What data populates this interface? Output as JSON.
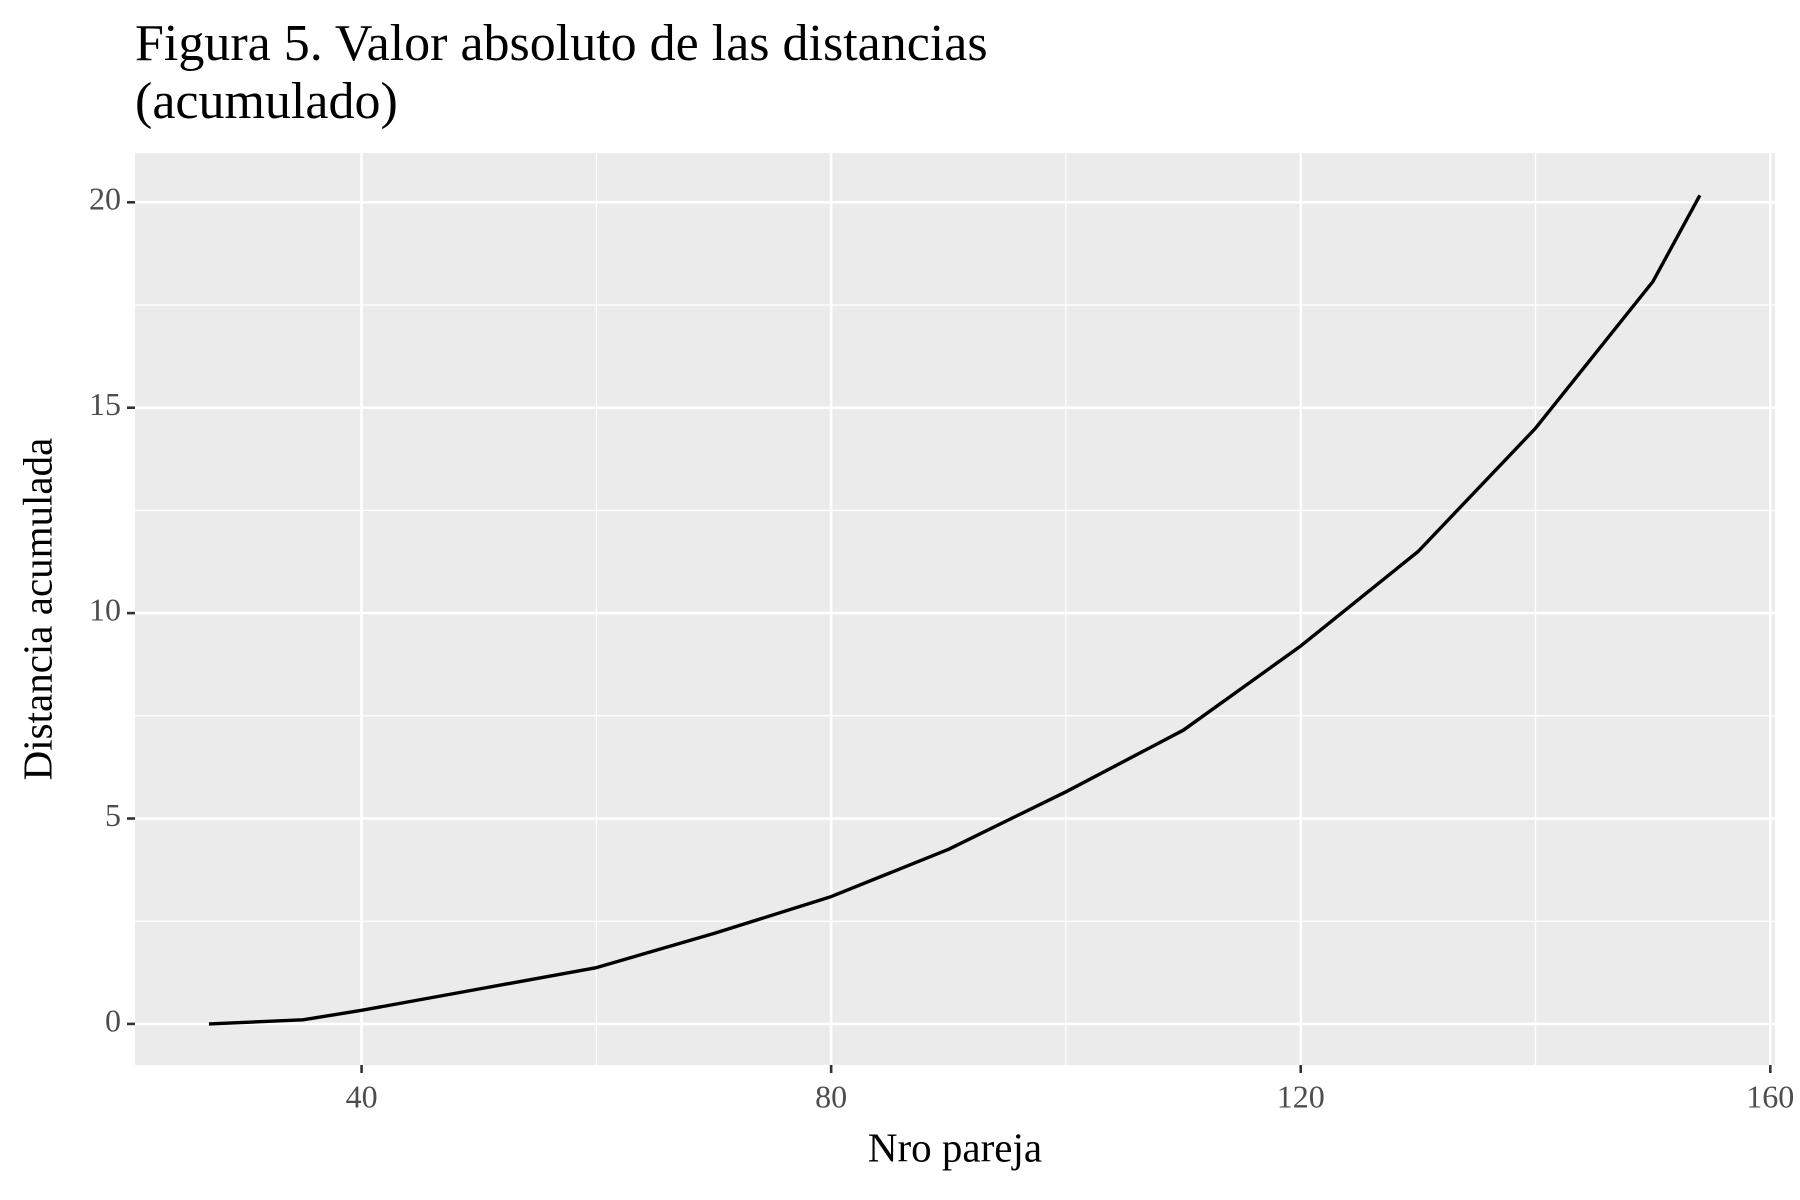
{
  "chart_data": {
    "type": "line",
    "title": [
      "Figura 5. Valor absoluto de las distancias",
      "(acumulado)"
    ],
    "x_label": "Nro pareja",
    "y_label": "Distancia acumulada",
    "x": [
      27,
      35,
      40,
      50,
      60,
      70,
      80,
      90,
      100,
      110,
      120,
      130,
      140,
      150,
      154
    ],
    "y": [
      0,
      0.1,
      0.33,
      0.85,
      1.37,
      2.2,
      3.1,
      4.25,
      5.65,
      7.15,
      9.2,
      11.5,
      14.5,
      18.07,
      20.17
    ],
    "color": "#000000",
    "xlim": [
      20.7,
      160.4
    ],
    "ylim": [
      -1.0,
      21.2
    ],
    "xticks": [
      40,
      80,
      120,
      160
    ],
    "yticks": [
      0,
      5,
      10,
      15,
      20
    ],
    "xminor": [
      60,
      100,
      140
    ],
    "yminor": [
      2.5,
      7.5,
      12.5,
      17.5
    ],
    "grid": true,
    "panel_color": "#ebebeb"
  }
}
